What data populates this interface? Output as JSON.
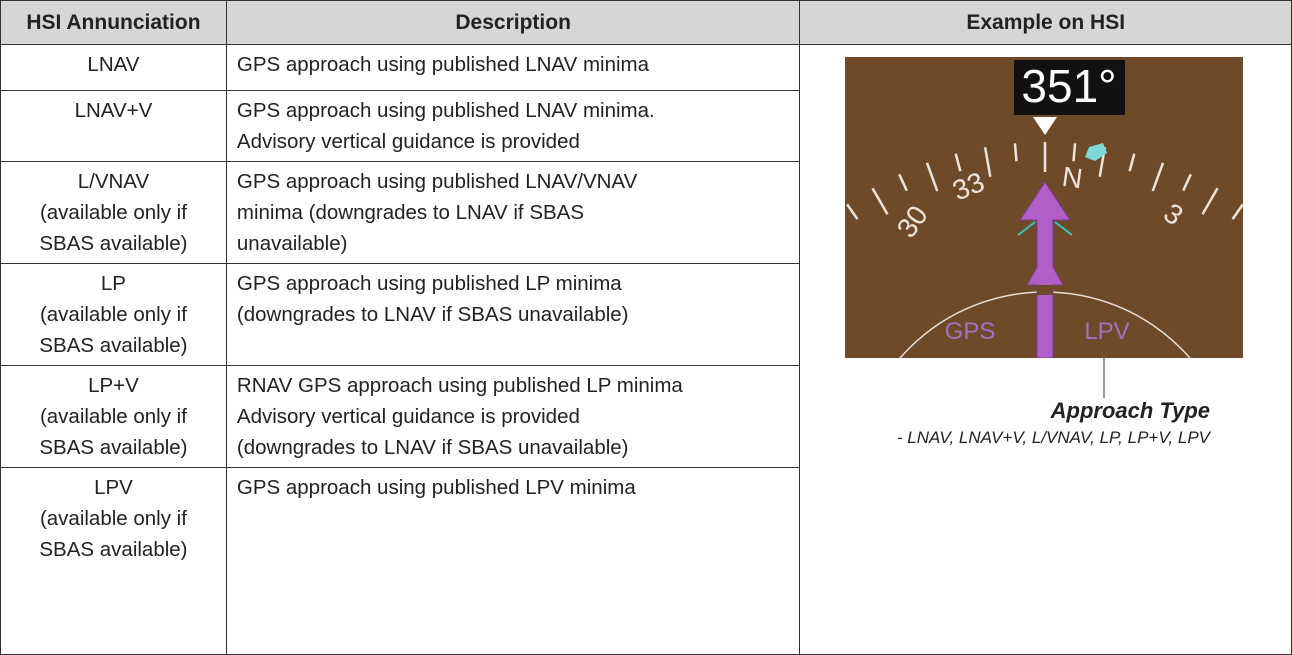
{
  "table": {
    "headers": [
      "HSI Annunciation",
      "Description",
      "Example on HSI"
    ],
    "rows": [
      {
        "annunciation": [
          "LNAV"
        ],
        "description": [
          "GPS approach using published LNAV minima"
        ]
      },
      {
        "annunciation": [
          "LNAV+V"
        ],
        "description": [
          "GPS approach using published LNAV minima.",
          "Advisory vertical guidance is provided"
        ]
      },
      {
        "annunciation": [
          "L/VNAV",
          "(available only if",
          "SBAS available)"
        ],
        "description": [
          "GPS approach using published LNAV/VNAV",
          "minima  (downgrades to LNAV if SBAS",
          "unavailable)"
        ]
      },
      {
        "annunciation": [
          "LP",
          "(available only if",
          "SBAS available)"
        ],
        "description": [
          "GPS approach using published LP minima",
          "(downgrades to LNAV if SBAS unavailable)"
        ]
      },
      {
        "annunciation": [
          "LP+V",
          "(available only if",
          "SBAS available)"
        ],
        "description": [
          "RNAV GPS approach using published LP minima",
          "Advisory vertical guidance is provided",
          "(downgrades to LNAV if SBAS unavailable)"
        ]
      },
      {
        "annunciation": [
          "LPV",
          "(available only if",
          "SBAS available)"
        ],
        "description": [
          "GPS approach using published LPV minima"
        ]
      }
    ]
  },
  "figure": {
    "heading": "351°",
    "compass_labels": [
      "33",
      "30",
      "3",
      "N"
    ],
    "cdi_source": "GPS",
    "approach_type": "LPV",
    "caption_title": "Approach Type",
    "caption_list": "- LNAV, LNAV+V, L/VNAV, LP, LP+V, LPV"
  }
}
